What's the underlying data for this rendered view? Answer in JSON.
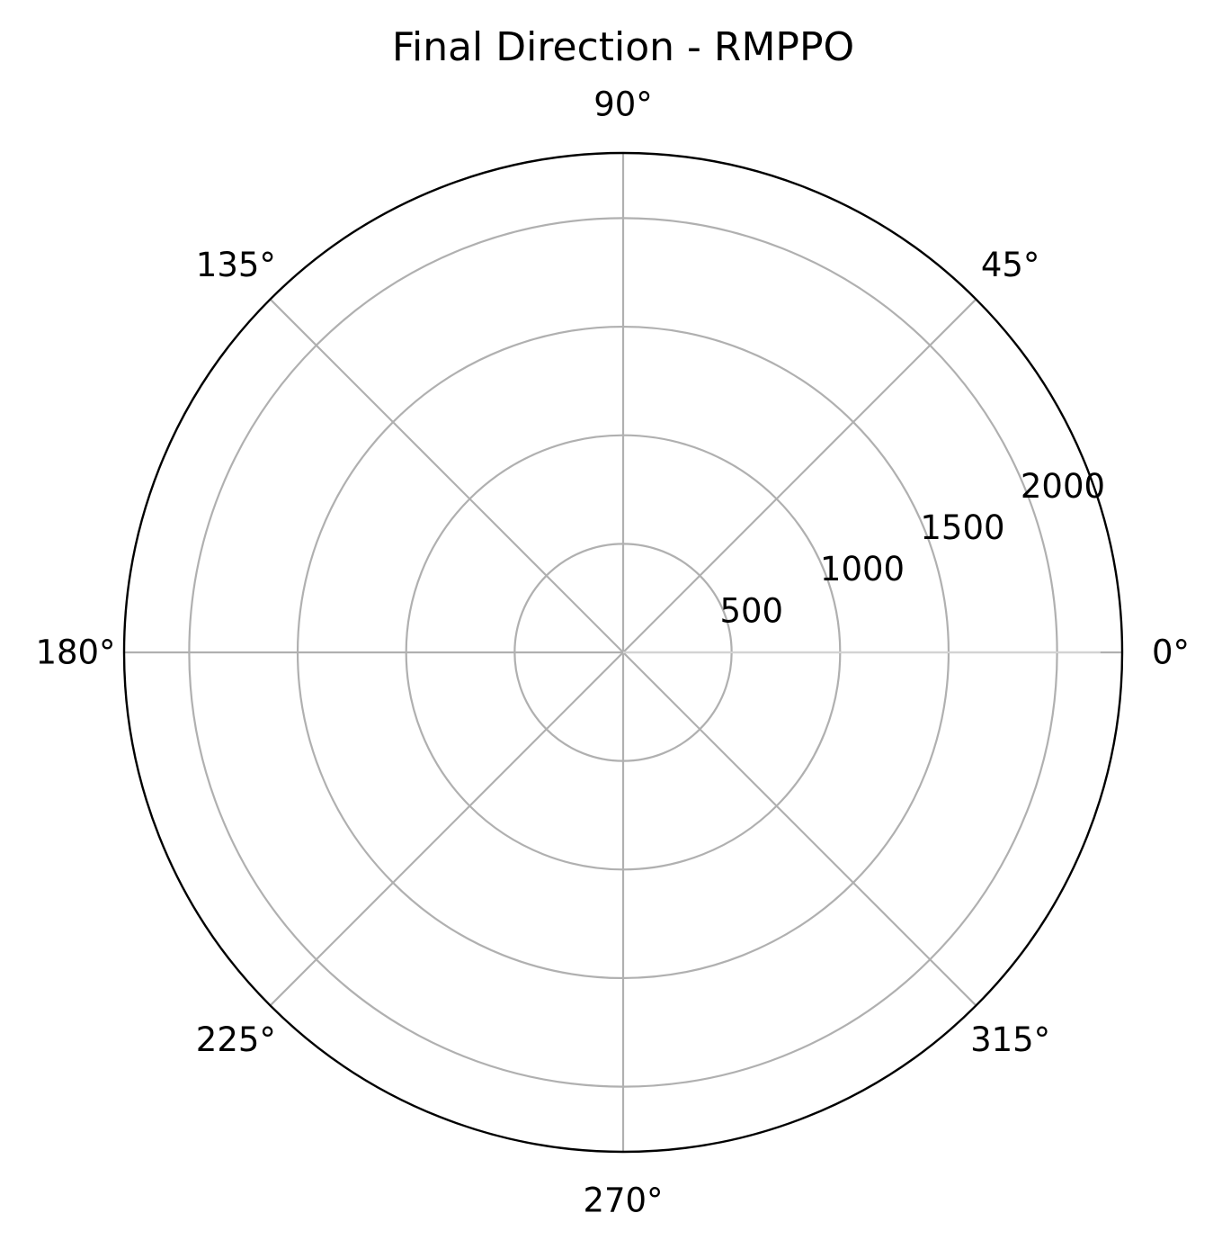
{
  "chart_data": {
    "type": "polar",
    "title": "Final Direction - RMPPO",
    "theta_ticks": [
      {
        "angle": 0,
        "label": "0°"
      },
      {
        "angle": 45,
        "label": "45°"
      },
      {
        "angle": 90,
        "label": "90°"
      },
      {
        "angle": 135,
        "label": "135°"
      },
      {
        "angle": 180,
        "label": "180°"
      },
      {
        "angle": 225,
        "label": "225°"
      },
      {
        "angle": 270,
        "label": "270°"
      },
      {
        "angle": 315,
        "label": "315°"
      }
    ],
    "r_ticks": [
      {
        "value": 500,
        "label": "500"
      },
      {
        "value": 1000,
        "label": "1000"
      },
      {
        "value": 1500,
        "label": "1500"
      },
      {
        "value": 2000,
        "label": "2000"
      }
    ],
    "rlim": [
      0,
      2300
    ],
    "grid": true,
    "series": [
      {
        "theta": [
          0,
          0
        ],
        "r": [
          0,
          2200
        ]
      }
    ],
    "colors": {
      "grid": "#b0b0b0",
      "outline": "#000000",
      "series": "#d3d3d3"
    }
  }
}
